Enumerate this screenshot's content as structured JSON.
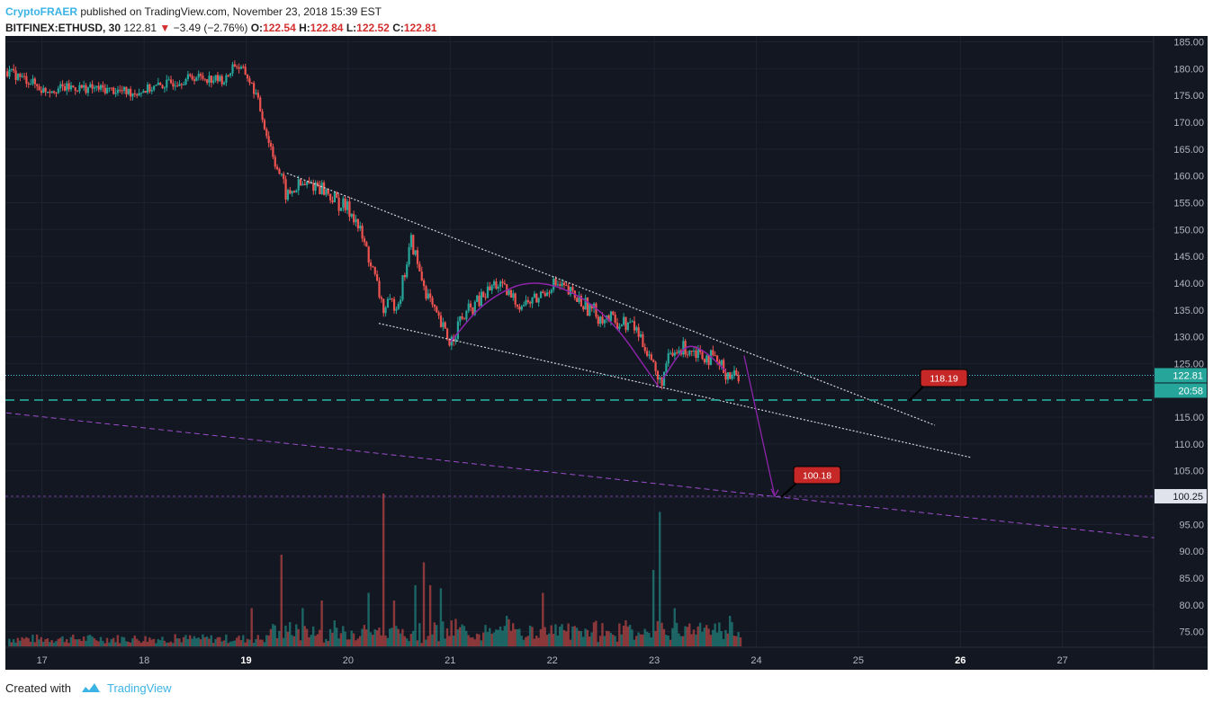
{
  "header": {
    "author": "CryptoFRAER",
    "published": " published on TradingView.com, November 23, 2018 15:39 EST",
    "symbol": "BITFINEX:ETHUSD, 30",
    "last": "122.81",
    "change": "−3.49 (−2.76%)",
    "open_label": "O:",
    "open": "122.54",
    "high_label": "H:",
    "high": "122.84",
    "low_label": "L:",
    "low": "122.52",
    "close_label": "C:",
    "close": "122.81"
  },
  "footer": {
    "created_with": "Created with",
    "brand": "TradingView"
  },
  "colors": {
    "background": "#131722",
    "up": "#26a69a",
    "down": "#ef5350",
    "grid": "#1e2230",
    "axis_text": "#b2b5be",
    "price_line": "#4dd0e1",
    "target": "#9c27b0",
    "label_bg": "#c62828"
  },
  "chart_data": {
    "type": "candlestick",
    "ylim": [
      72,
      186
    ],
    "xlim": [
      16.65,
      27.9
    ],
    "y_ticks": [
      "185.00",
      "180.00",
      "175.00",
      "170.00",
      "165.00",
      "160.00",
      "155.00",
      "150.00",
      "145.00",
      "140.00",
      "135.00",
      "130.00",
      "125.00",
      "120.00",
      "115.00",
      "110.00",
      "105.00",
      "100.00",
      "95.00",
      "90.00",
      "85.00",
      "80.00",
      "75.00"
    ],
    "x_ticks": [
      "17",
      "18",
      "19",
      "20",
      "21",
      "22",
      "23",
      "24",
      "25",
      "26",
      "27"
    ],
    "x_ticks_bold": [
      "19",
      "26"
    ],
    "price_path": [
      [
        16.65,
        179.5
      ],
      [
        16.9,
        177.5
      ],
      [
        17.0,
        176
      ],
      [
        17.3,
        176.5
      ],
      [
        17.6,
        176.2
      ],
      [
        17.9,
        175.5
      ],
      [
        18.2,
        177
      ],
      [
        18.5,
        178.5
      ],
      [
        18.8,
        177.8
      ],
      [
        18.88,
        181
      ],
      [
        19.0,
        179
      ],
      [
        19.1,
        175
      ],
      [
        19.2,
        168
      ],
      [
        19.3,
        162
      ],
      [
        19.4,
        156
      ],
      [
        19.5,
        158
      ],
      [
        19.7,
        158.5
      ],
      [
        19.9,
        155
      ],
      [
        20.05,
        153
      ],
      [
        20.2,
        145
      ],
      [
        20.35,
        135
      ],
      [
        20.5,
        137
      ],
      [
        20.62,
        148
      ],
      [
        20.7,
        142
      ],
      [
        20.85,
        134
      ],
      [
        21.0,
        129
      ],
      [
        21.1,
        133
      ],
      [
        21.3,
        137
      ],
      [
        21.45,
        140
      ],
      [
        21.55,
        138
      ],
      [
        21.7,
        136
      ],
      [
        21.85,
        137
      ],
      [
        22.0,
        140
      ],
      [
        22.1,
        139
      ],
      [
        22.25,
        137
      ],
      [
        22.45,
        134
      ],
      [
        22.6,
        133
      ],
      [
        22.8,
        132
      ],
      [
        22.95,
        127
      ],
      [
        23.05,
        121
      ],
      [
        23.15,
        126
      ],
      [
        23.3,
        128
      ],
      [
        23.42,
        127.5
      ],
      [
        23.55,
        126
      ],
      [
        23.7,
        123.5
      ],
      [
        23.8,
        122.6
      ],
      [
        23.84,
        122.81
      ]
    ],
    "price_noise": 1.0,
    "last_price": 122.81,
    "last_price_label": "122.81",
    "countdown_label": "20:58",
    "support_level": 118.19,
    "support_label": "118.19",
    "target_level": 100.25,
    "target_axis_label": "100.25",
    "target_label": "100.18",
    "trendlines": [
      {
        "name": "upper-resistance-line",
        "points": [
          [
            19.4,
            160.5
          ],
          [
            25.75,
            113.5
          ]
        ]
      },
      {
        "name": "lower-support-line",
        "points": [
          [
            20.3,
            132.5
          ],
          [
            26.1,
            107.5
          ]
        ]
      }
    ],
    "long_trendline": [
      [
        16.65,
        115.8
      ],
      [
        27.9,
        92.5
      ]
    ],
    "arcs": [
      {
        "name": "arc-left",
        "points": [
          [
            21.0,
            129
          ],
          [
            21.35,
            137
          ],
          [
            21.85,
            141.2
          ],
          [
            22.5,
            135.5
          ],
          [
            23.05,
            120.5
          ]
        ]
      },
      {
        "name": "arc-right",
        "points": [
          [
            23.08,
            122
          ],
          [
            23.25,
            127
          ],
          [
            23.35,
            128.6
          ],
          [
            23.52,
            127
          ],
          [
            23.7,
            123.6
          ]
        ]
      }
    ],
    "projection_arrow": [
      [
        23.88,
        126.5
      ],
      [
        24.18,
        100.3
      ]
    ],
    "volume": {
      "max": 100,
      "spikes": [
        [
          18.3,
          8
        ],
        [
          19.05,
          25
        ],
        [
          19.35,
          60
        ],
        [
          19.55,
          25
        ],
        [
          19.75,
          30
        ],
        [
          20.2,
          35
        ],
        [
          20.35,
          100
        ],
        [
          20.45,
          30
        ],
        [
          20.65,
          40
        ],
        [
          20.75,
          55
        ],
        [
          20.8,
          40
        ],
        [
          20.9,
          38
        ],
        [
          21.05,
          18
        ],
        [
          21.55,
          20
        ],
        [
          21.9,
          35
        ],
        [
          22.15,
          15
        ],
        [
          22.65,
          15
        ],
        [
          23.0,
          50
        ],
        [
          23.05,
          88
        ],
        [
          23.2,
          25
        ],
        [
          23.35,
          15
        ],
        [
          23.6,
          15
        ],
        [
          23.75,
          20
        ]
      ]
    }
  }
}
